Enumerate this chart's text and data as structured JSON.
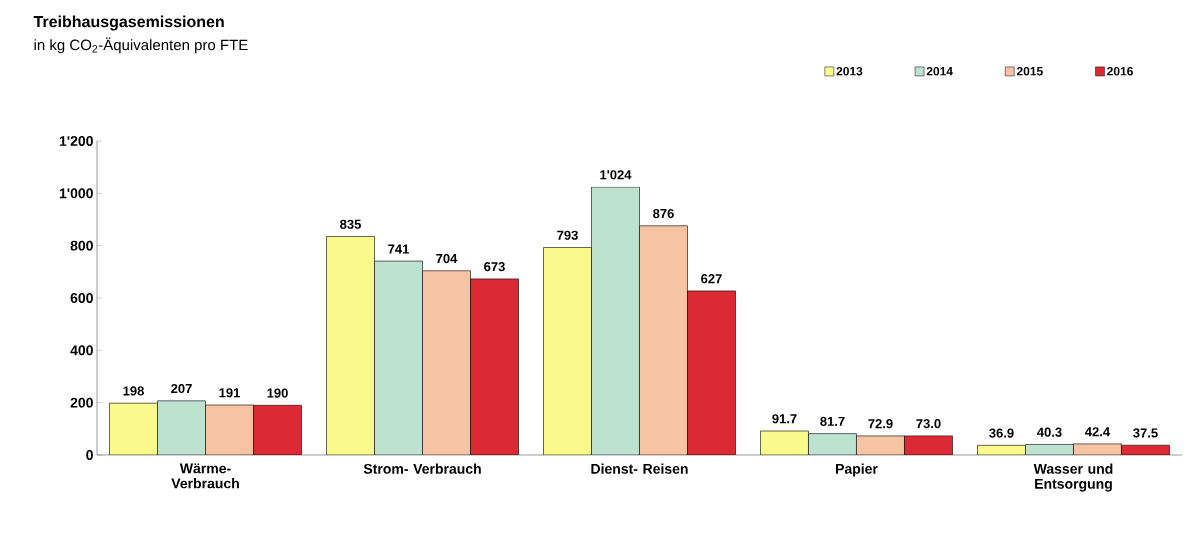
{
  "chart_data": {
    "type": "bar",
    "title": "Treibhausgasemissionen",
    "subtitle": "in kg CO$_{2}$-Äquivalenten pro FTE",
    "categories": [
      "Wärme- Verbrauch",
      "Strom- Verbrauch",
      "Dienst- Reisen",
      "Papier",
      "Wasser und Entsorgung"
    ],
    "series": [
      {
        "name": "2013",
        "color": "#fafa8c",
        "values": [
          198,
          835,
          793,
          91.7,
          36.9
        ],
        "value_labels": [
          "198",
          "835",
          "793",
          "91.7",
          "36.9"
        ]
      },
      {
        "name": "2014",
        "color": "#bde3d0",
        "values": [
          207,
          741,
          1024,
          81.7,
          40.3
        ],
        "value_labels": [
          "207",
          "741",
          "1'024",
          "81.7",
          "40.3"
        ]
      },
      {
        "name": "2015",
        "color": "#f6c3a3",
        "values": [
          191,
          704,
          876,
          72.9,
          42.4
        ],
        "value_labels": [
          "191",
          "704",
          "876",
          "72.9",
          "42.4"
        ]
      },
      {
        "name": "2016",
        "color": "#dc2a35",
        "values": [
          190,
          673,
          627,
          73.0,
          37.5
        ],
        "value_labels": [
          "190",
          "673",
          "627",
          "73.0",
          "37.5"
        ]
      }
    ],
    "ylim": [
      0,
      1200
    ],
    "yticks": [
      0,
      200,
      400,
      600,
      800,
      {
        "value": 1000,
        "label": "1'000"
      },
      {
        "value": 1200,
        "label": "1'200"
      }
    ],
    "grid": false,
    "legend": "top right"
  }
}
